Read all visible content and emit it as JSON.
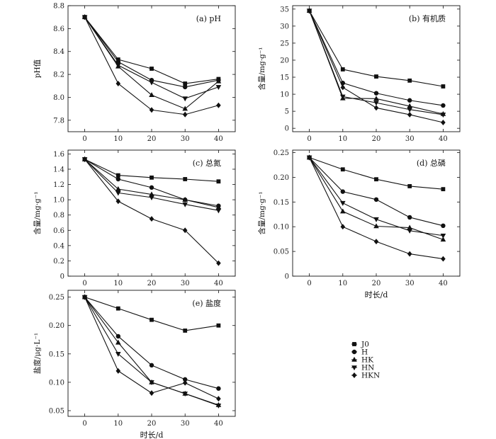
{
  "legend": {
    "entries": [
      "J0",
      "H",
      "HK",
      "HN",
      "HKN"
    ],
    "markers": [
      "square",
      "circle",
      "triangle-up",
      "triangle-down",
      "diamond"
    ]
  },
  "chart_data": [
    {
      "type": "line",
      "title": "(a) pH",
      "ylabel": "pH值",
      "xlabel": "",
      "x": [
        0,
        10,
        20,
        30,
        40
      ],
      "xticks": [
        0,
        10,
        20,
        30,
        40
      ],
      "ylim": [
        7.7,
        8.8
      ],
      "yticks": [
        "7.8",
        "8.0",
        "8.2",
        "8.4",
        "8.6",
        "8.8"
      ],
      "series": [
        {
          "name": "J0",
          "values": [
            8.7,
            8.33,
            8.25,
            8.12,
            8.16
          ]
        },
        {
          "name": "H",
          "values": [
            8.7,
            8.31,
            8.15,
            8.09,
            8.15
          ]
        },
        {
          "name": "HK",
          "values": [
            8.7,
            8.27,
            8.02,
            7.9,
            8.14
          ]
        },
        {
          "name": "HN",
          "values": [
            8.7,
            8.28,
            8.13,
            7.99,
            8.09
          ]
        },
        {
          "name": "HKN",
          "values": [
            8.7,
            8.12,
            7.89,
            7.85,
            7.93
          ]
        }
      ]
    },
    {
      "type": "line",
      "title": "(b) 有机质",
      "ylabel": "含量/mg·g⁻¹",
      "xlabel": "",
      "x": [
        0,
        10,
        20,
        30,
        40
      ],
      "xticks": [
        0,
        10,
        20,
        30,
        40
      ],
      "ylim": [
        -1,
        36
      ],
      "yticks": [
        "0",
        "5",
        "10",
        "15",
        "20",
        "25",
        "30",
        "35"
      ],
      "series": [
        {
          "name": "J0",
          "values": [
            34.5,
            17.3,
            15.2,
            14.0,
            12.3
          ]
        },
        {
          "name": "H",
          "values": [
            34.5,
            13.3,
            10.3,
            8.2,
            6.7
          ]
        },
        {
          "name": "HK",
          "values": [
            34.5,
            8.8,
            8.7,
            6.5,
            4.2
          ]
        },
        {
          "name": "HN",
          "values": [
            34.5,
            9.3,
            7.5,
            5.5,
            4.0
          ]
        },
        {
          "name": "HKN",
          "values": [
            34.5,
            12.0,
            6.0,
            4.0,
            1.7
          ]
        }
      ]
    },
    {
      "type": "line",
      "title": "(c) 总氮",
      "ylabel": "含量/mg·g⁻¹",
      "xlabel": "",
      "x": [
        0,
        10,
        20,
        30,
        40
      ],
      "xticks": [
        0,
        10,
        20,
        30,
        40
      ],
      "ylim": [
        0,
        1.65
      ],
      "yticks": [
        "0",
        "0.2",
        "0.4",
        "0.6",
        "0.8",
        "1.0",
        "1.2",
        "1.4",
        "1.6"
      ],
      "series": [
        {
          "name": "J0",
          "values": [
            1.53,
            1.32,
            1.29,
            1.27,
            1.24
          ]
        },
        {
          "name": "H",
          "values": [
            1.53,
            1.27,
            1.16,
            1.0,
            0.92
          ]
        },
        {
          "name": "HK",
          "values": [
            1.53,
            1.14,
            1.07,
            1.0,
            0.9
          ]
        },
        {
          "name": "HN",
          "values": [
            1.53,
            1.09,
            1.03,
            0.94,
            0.86
          ]
        },
        {
          "name": "HKN",
          "values": [
            1.53,
            0.98,
            0.75,
            0.6,
            0.17
          ]
        }
      ]
    },
    {
      "type": "line",
      "title": "(d) 总磷",
      "ylabel": "含量/mg·g⁻¹",
      "xlabel": "时长/d",
      "x": [
        0,
        10,
        20,
        30,
        40
      ],
      "xticks": [
        0,
        10,
        20,
        30,
        40
      ],
      "ylim": [
        0,
        0.255
      ],
      "yticks": [
        "0",
        "0.05",
        "0.10",
        "0.15",
        "0.20",
        "0.25"
      ],
      "series": [
        {
          "name": "J0",
          "values": [
            0.24,
            0.216,
            0.196,
            0.182,
            0.176
          ]
        },
        {
          "name": "H",
          "values": [
            0.24,
            0.171,
            0.155,
            0.119,
            0.102
          ]
        },
        {
          "name": "HK",
          "values": [
            0.24,
            0.131,
            0.101,
            0.098,
            0.074
          ]
        },
        {
          "name": "HN",
          "values": [
            0.24,
            0.148,
            0.115,
            0.092,
            0.082
          ]
        },
        {
          "name": "HKN",
          "values": [
            0.24,
            0.1,
            0.07,
            0.045,
            0.035
          ]
        }
      ]
    },
    {
      "type": "line",
      "title": "(e) 盐度",
      "ylabel": "盐度/μg·L⁻¹",
      "xlabel": "时长/d",
      "x": [
        0,
        10,
        20,
        30,
        40
      ],
      "xticks": [
        0,
        10,
        20,
        30,
        40
      ],
      "ylim": [
        0.04,
        0.262
      ],
      "yticks": [
        "0.05",
        "0.10",
        "0.15",
        "0.20",
        "0.25"
      ],
      "series": [
        {
          "name": "J0",
          "values": [
            0.25,
            0.23,
            0.21,
            0.191,
            0.2
          ]
        },
        {
          "name": "H",
          "values": [
            0.25,
            0.181,
            0.13,
            0.105,
            0.089
          ]
        },
        {
          "name": "HK",
          "values": [
            0.25,
            0.17,
            0.1,
            0.08,
            0.06
          ]
        },
        {
          "name": "HN",
          "values": [
            0.25,
            0.15,
            0.1,
            0.08,
            0.059
          ]
        },
        {
          "name": "HKN",
          "values": [
            0.25,
            0.12,
            0.081,
            0.099,
            0.071
          ]
        }
      ]
    }
  ]
}
